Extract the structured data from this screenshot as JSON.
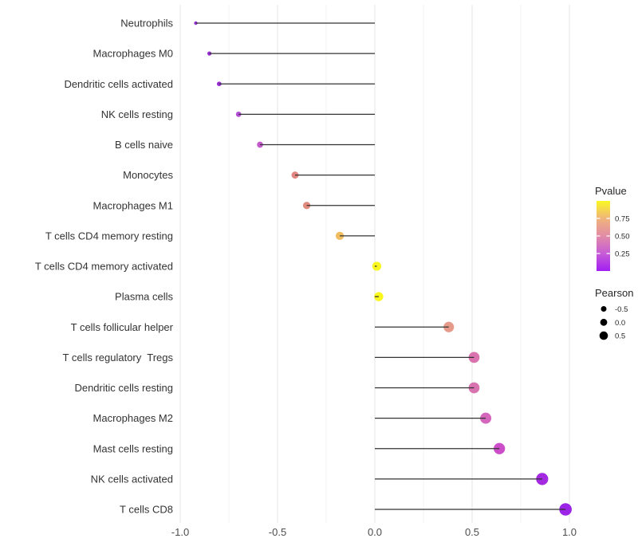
{
  "background": "#ffffff",
  "chart_data": {
    "type": "scatter",
    "subtype": "lollipop-correlation",
    "title": "",
    "xlabel": "",
    "ylabel": "",
    "xlim": [
      -1.02,
      1.08
    ],
    "grid": "vertical-major-and-minor",
    "x_tick_labels": [
      "-1.0",
      "-0.5",
      "0.0",
      "0.5",
      "1.0"
    ],
    "x_major_ticks": [
      -1.0,
      -0.5,
      0.0,
      0.5,
      1.0
    ],
    "x_minor_ticks": [
      -0.75,
      -0.25,
      0.25,
      0.75
    ],
    "stick_color": "#333333",
    "grid_major_color": "#e6e6e6",
    "grid_minor_color": "#f2f2f2",
    "rows": [
      {
        "label": "Neutrophils",
        "pearson": -0.92,
        "color": "#9831D4"
      },
      {
        "label": "Macrophages M0",
        "pearson": -0.85,
        "color": "#9530D0"
      },
      {
        "label": "Dendritic cells activated",
        "pearson": -0.8,
        "color": "#9B30D6"
      },
      {
        "label": "NK cells resting",
        "pearson": -0.7,
        "color": "#B44ED6"
      },
      {
        "label": "B cells naive",
        "pearson": -0.59,
        "color": "#C45ACC"
      },
      {
        "label": "Monocytes",
        "pearson": -0.41,
        "color": "#E28681"
      },
      {
        "label": "Macrophages M1",
        "pearson": -0.35,
        "color": "#E18A7E"
      },
      {
        "label": "T cells CD4 memory resting",
        "pearson": -0.18,
        "color": "#F0BE61"
      },
      {
        "label": "T cells CD4 memory activated",
        "pearson": 0.01,
        "color": "#F8F621"
      },
      {
        "label": "Plasma cells",
        "pearson": 0.02,
        "color": "#F9F71E"
      },
      {
        "label": "T cells follicular helper",
        "pearson": 0.38,
        "color": "#E69A8A"
      },
      {
        "label": "T cells regulatory  Tregs",
        "pearson": 0.51,
        "color": "#DA73AE"
      },
      {
        "label": "Dendritic cells resting",
        "pearson": 0.51,
        "color": "#D973AF"
      },
      {
        "label": "Macrophages M2",
        "pearson": 0.57,
        "color": "#D466BC"
      },
      {
        "label": "Mast cells resting",
        "pearson": 0.64,
        "color": "#CB4EC8"
      },
      {
        "label": "NK cells activated",
        "pearson": 0.86,
        "color": "#A32AE0"
      },
      {
        "label": "T cells CD8",
        "pearson": 0.98,
        "color": "#9B24E6"
      }
    ],
    "legend": {
      "pvalue": {
        "title": "Pvalue",
        "tick_labels": [
          "0.75",
          "0.50",
          "0.25"
        ],
        "gradient_stops": [
          {
            "offset": 0.0,
            "color": "#FAF823"
          },
          {
            "offset": 0.25,
            "color": "#F0B47B"
          },
          {
            "offset": 0.5,
            "color": "#E28BA6"
          },
          {
            "offset": 0.75,
            "color": "#C65CD6"
          },
          {
            "offset": 1.0,
            "color": "#A21FF2"
          }
        ]
      },
      "pearson": {
        "title": "Pearson",
        "dot_color": "#000000",
        "items": [
          {
            "label": "-0.5",
            "radius": 3.5
          },
          {
            "label": "0.0",
            "radius": 4.4
          },
          {
            "label": "0.5",
            "radius": 5.3
          }
        ]
      }
    }
  }
}
